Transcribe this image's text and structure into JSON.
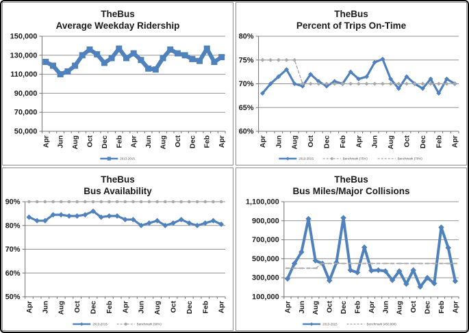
{
  "page": {
    "accent_blue": "#4F81BD",
    "benchmark_gray": "#A8A8A8",
    "grid_color": "#909090",
    "axis_color": "#707070",
    "text_color": "#1a1a1a",
    "legend_text_color": "#4d4d4d"
  },
  "chart_data": [
    {
      "type": "line",
      "title": "TheBus",
      "subtitle": "Average Weekday Ridership",
      "x_tick_labels": [
        "Apr",
        "Jun",
        "Aug",
        "Oct",
        "Dec",
        "Feb",
        "Apr",
        "Jun",
        "Aug",
        "Oct",
        "Dec",
        "Feb",
        "Apr"
      ],
      "x_points": 25,
      "x_label_every": 2,
      "ylim": [
        50000,
        150000
      ],
      "yticks": [
        50000,
        70000,
        90000,
        110000,
        130000,
        150000
      ],
      "y_format": "comma",
      "grid": true,
      "legend_position": "bottom",
      "series": [
        {
          "name": "2013-2015",
          "color": "#4F81BD",
          "width": 6,
          "dashed": false,
          "marker": "square",
          "marker_size": 9,
          "values": [
            123000,
            119000,
            110000,
            113000,
            119000,
            130000,
            136000,
            131000,
            122000,
            127000,
            137000,
            127000,
            132000,
            125000,
            116000,
            115000,
            127000,
            136000,
            132000,
            130000,
            126000,
            124000,
            137000,
            123000,
            128000
          ]
        }
      ],
      "legend": [
        {
          "label": "2013-2015",
          "color": "#4F81BD",
          "dashed": false,
          "marker": "square"
        }
      ]
    },
    {
      "type": "line",
      "title": "TheBus",
      "subtitle": "Percent of Trips On-Time",
      "x_tick_labels": [
        "Apr",
        "Jun",
        "Aug",
        "Oct",
        "Dec",
        "Feb",
        "Apr",
        "Jun",
        "Aug",
        "Oct",
        "Dec",
        "Feb",
        "Apr"
      ],
      "x_points": 25,
      "x_label_every": 2,
      "ylim": [
        60,
        80
      ],
      "yticks": [
        60,
        65,
        70,
        75,
        80
      ],
      "y_format": "percent",
      "grid": true,
      "legend_position": "bottom",
      "series": [
        {
          "name": "2013-2015",
          "color": "#4F81BD",
          "width": 3.2,
          "dashed": false,
          "marker": "diamond",
          "marker_size": 7,
          "values": [
            68,
            70,
            71.5,
            73,
            70,
            69.5,
            72,
            70.5,
            69.5,
            70.5,
            70,
            72.5,
            71,
            71.5,
            74.5,
            75.2,
            71,
            69,
            71.5,
            70,
            69,
            71,
            68,
            71,
            70
          ]
        },
        {
          "name": "Benchmark",
          "color": "#A8A8A8",
          "width": 1.4,
          "dashed": true,
          "marker": "diamond",
          "marker_size": 6,
          "values": [
            75,
            75,
            75,
            75,
            75,
            70,
            70,
            70,
            70,
            70,
            70,
            70,
            70,
            70,
            70,
            70,
            70,
            70,
            70,
            70,
            70,
            70,
            70,
            70,
            70
          ]
        }
      ],
      "legend": [
        {
          "label": "2013-2015",
          "color": "#4F81BD",
          "dashed": false,
          "marker": "diamond"
        },
        {
          "label": "Benchmark (75%)",
          "color": "#A8A8A8",
          "dashed": true,
          "marker": "diamond"
        },
        {
          "label": "Benchmark (70%)",
          "color": "#A8A8A8",
          "dashed": true,
          "marker": "dash"
        }
      ]
    },
    {
      "type": "line",
      "title": "TheBus",
      "subtitle": "Bus Availability",
      "x_tick_labels": [
        "Apr",
        "Jun",
        "Aug",
        "Oct",
        "Dec",
        "Feb",
        "Apr",
        "Jun",
        "Aug",
        "Oct",
        "Dec",
        "Feb",
        "Apr"
      ],
      "x_points": 25,
      "x_label_every": 2,
      "ylim": [
        50,
        90
      ],
      "yticks": [
        50,
        60,
        70,
        80,
        90
      ],
      "y_format": "percent",
      "grid": true,
      "legend_position": "bottom",
      "series": [
        {
          "name": "2013-2015",
          "color": "#4F81BD",
          "width": 3.2,
          "dashed": false,
          "marker": "diamond",
          "marker_size": 8,
          "values": [
            83.5,
            82,
            82,
            84.5,
            84.5,
            84,
            84,
            84.5,
            86,
            83.5,
            84,
            84,
            82.5,
            82.5,
            80,
            81,
            82,
            80,
            81,
            82.5,
            81,
            80,
            81,
            82,
            80.5
          ]
        },
        {
          "name": "Benchmark",
          "color": "#A8A8A8",
          "width": 1.4,
          "dashed": true,
          "marker": "circle",
          "marker_size": 4.5,
          "values": [
            90,
            90,
            90,
            90,
            90,
            90,
            90,
            90,
            90,
            90,
            90,
            90,
            90,
            90,
            90,
            90,
            90,
            90,
            90,
            90,
            90,
            90,
            90,
            90,
            90
          ]
        }
      ],
      "legend": [
        {
          "label": "2013-2015",
          "color": "#4F81BD",
          "dashed": false,
          "marker": "diamond"
        },
        {
          "label": "Benchmark (90%)",
          "color": "#A8A8A8",
          "dashed": true,
          "marker": "circle"
        }
      ]
    },
    {
      "type": "line",
      "title": "TheBus",
      "subtitle": "Bus Miles/Major Collisions",
      "x_tick_labels": [
        "Apr",
        "Jun",
        "Aug",
        "Oct",
        "Dec",
        "Feb",
        "Apr",
        "Jun",
        "Aug",
        "Oct",
        "Dec",
        "Feb",
        "Apr"
      ],
      "x_points": 25,
      "x_label_every": 2,
      "ylim": [
        100000,
        1100000
      ],
      "yticks": [
        100000,
        300000,
        500000,
        700000,
        900000,
        1100000
      ],
      "y_format": "comma",
      "grid": true,
      "legend_position": "bottom",
      "series": [
        {
          "name": "2013-2015",
          "color": "#4F81BD",
          "width": 4,
          "dashed": false,
          "marker": "diamond",
          "marker_size": 8.5,
          "values": [
            290000,
            450000,
            570000,
            920000,
            480000,
            450000,
            270000,
            460000,
            930000,
            380000,
            355000,
            620000,
            375000,
            380000,
            370000,
            275000,
            370000,
            235000,
            380000,
            205000,
            300000,
            240000,
            830000,
            615000,
            265000
          ]
        },
        {
          "name": "Benchmark",
          "color": "#A8A8A8",
          "width": 1.4,
          "dashed": true,
          "marker": "dash",
          "marker_size": 6,
          "values": [
            400000,
            400000,
            400000,
            400000,
            400000,
            450000,
            450000,
            450000,
            450000,
            450000,
            450000,
            450000,
            450000,
            450000,
            450000,
            450000,
            450000,
            450000,
            450000,
            450000,
            450000,
            450000,
            450000,
            450000,
            450000
          ]
        }
      ],
      "legend": [
        {
          "label": "2013-2015",
          "color": "#4F81BD",
          "dashed": false,
          "marker": "diamond"
        },
        {
          "label": "Benchmark (450,000)",
          "color": "#A8A8A8",
          "dashed": true,
          "marker": "dash"
        }
      ]
    }
  ]
}
